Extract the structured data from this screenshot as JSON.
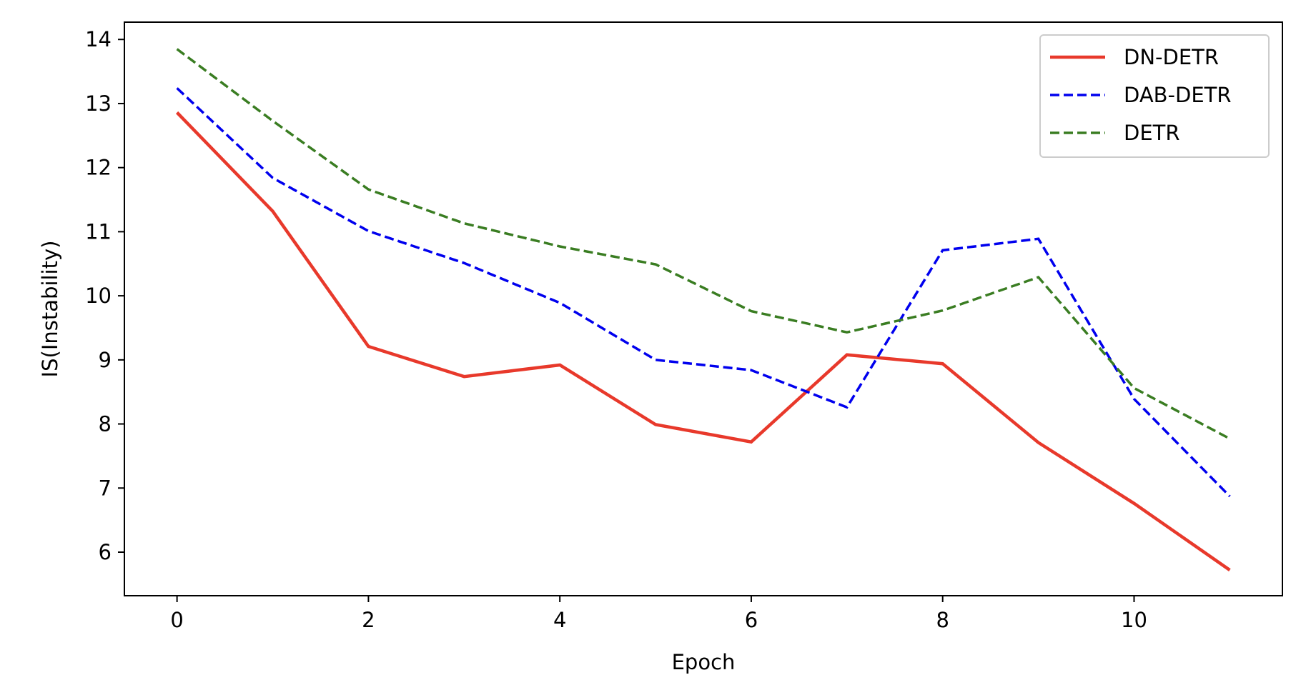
{
  "chart_data": {
    "type": "line",
    "title": "",
    "xlabel": "Epoch",
    "ylabel": "IS(Instability)",
    "xlim": [
      -0.55,
      11.55
    ],
    "ylim": [
      5.32,
      14.27
    ],
    "xticks": [
      0,
      2,
      4,
      6,
      8,
      10
    ],
    "yticks": [
      6,
      7,
      8,
      9,
      10,
      11,
      12,
      13,
      14
    ],
    "grid": false,
    "legend_position": "top-right",
    "x": [
      0,
      1,
      2,
      3,
      4,
      5,
      6,
      7,
      8,
      9,
      10,
      11
    ],
    "series": [
      {
        "name": "DN-DETR",
        "color": "#e8392b",
        "style": "solid",
        "values": [
          12.86,
          11.32,
          9.21,
          8.74,
          8.92,
          7.99,
          7.72,
          9.08,
          8.94,
          7.71,
          6.76,
          5.72
        ]
      },
      {
        "name": "DAB-DETR",
        "color": "#0000ee",
        "style": "dashed",
        "values": [
          13.24,
          11.84,
          11.01,
          10.51,
          9.89,
          9.0,
          8.84,
          8.26,
          10.71,
          10.89,
          8.39,
          6.87
        ]
      },
      {
        "name": "DETR",
        "color": "#3a7d22",
        "style": "dashed",
        "values": [
          13.85,
          12.73,
          11.66,
          11.13,
          10.77,
          10.49,
          9.76,
          9.43,
          9.77,
          10.29,
          8.56,
          7.77
        ]
      }
    ]
  }
}
